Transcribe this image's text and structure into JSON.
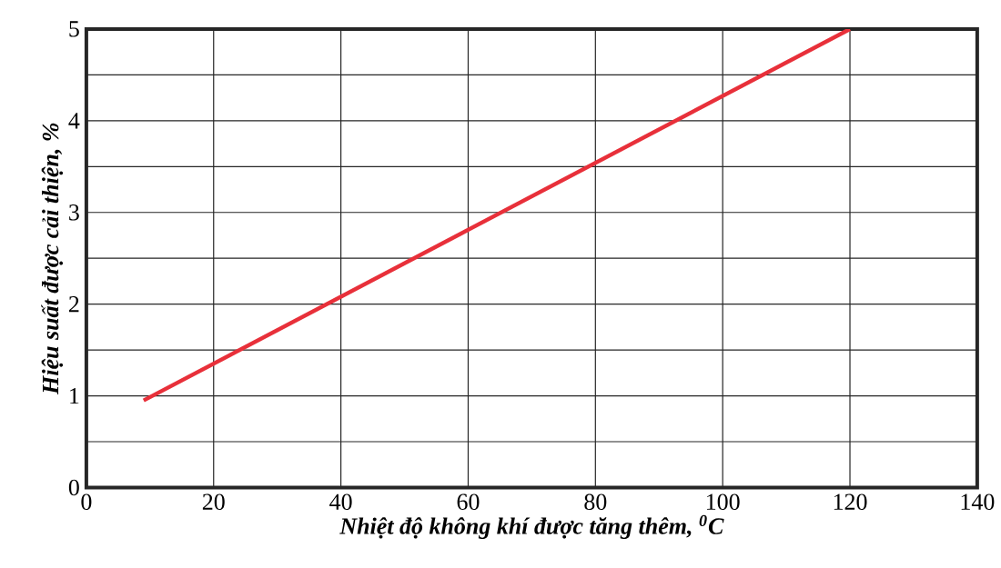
{
  "chart_data": {
    "type": "line",
    "xlabel": "Nhiệt độ không khí được tăng thêm, $^{0}$C",
    "ylabel": "Hiệu suất được cải thiện, %",
    "x": [
      9,
      120
    ],
    "series": [
      {
        "color": "#e8303a",
        "values": [
          0.95,
          5
        ]
      }
    ],
    "xlim": [
      0,
      140
    ],
    "xticks": [
      0,
      20,
      40,
      60,
      80,
      100,
      120,
      140
    ],
    "ylim": [
      0,
      5
    ],
    "yticks": [
      0,
      {
        "value": 0.5,
        "label": null
      },
      1,
      {
        "value": 1.5,
        "label": null
      },
      2,
      {
        "value": 2.5,
        "label": null
      },
      3,
      {
        "value": 3.5,
        "label": null
      },
      4,
      {
        "value": 4.5,
        "label": null
      },
      5
    ],
    "grid": true,
    "marker": "none",
    "line_style": "solid"
  }
}
